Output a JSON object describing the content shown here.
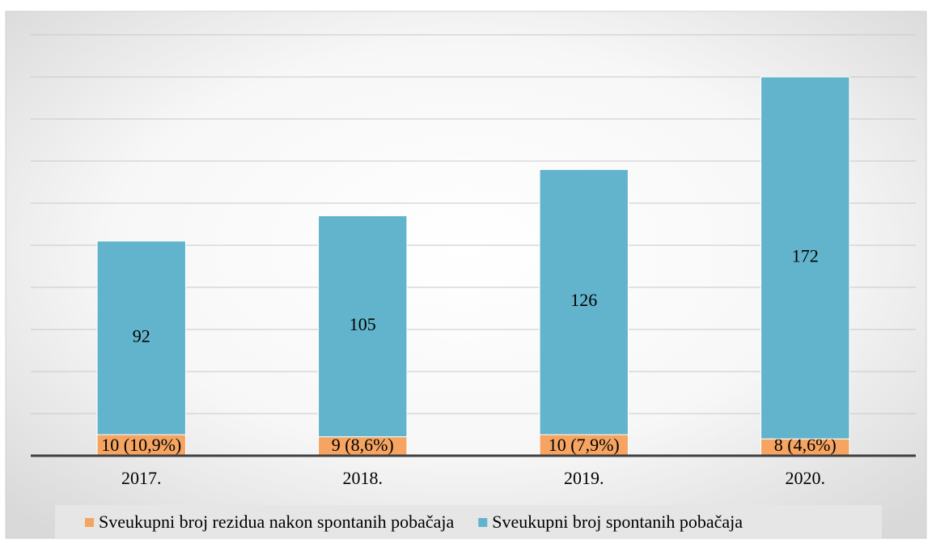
{
  "chart_data": {
    "type": "bar",
    "stacked": true,
    "categories": [
      "2017.",
      "2018.",
      "2019.",
      "2020."
    ],
    "series": [
      {
        "name": "Sveukupni broj rezidua nakon spontanih pobačaja",
        "color": "#f5a462",
        "values": [
          10,
          9,
          10,
          8
        ],
        "value_labels": [
          "10 (10,9%)",
          "9 (8,6%)",
          "10 (7,9%)",
          "8 (4,6%)"
        ]
      },
      {
        "name": "Sveukupni broj spontanih pobačaja",
        "color": "#62b4cc",
        "values": [
          92,
          105,
          126,
          172
        ]
      }
    ],
    "ylim": [
      0,
      200
    ],
    "yticks": [
      0,
      20,
      40,
      60,
      80,
      100,
      120,
      140,
      160,
      180,
      200
    ],
    "grid": true,
    "legend": "bottom"
  }
}
